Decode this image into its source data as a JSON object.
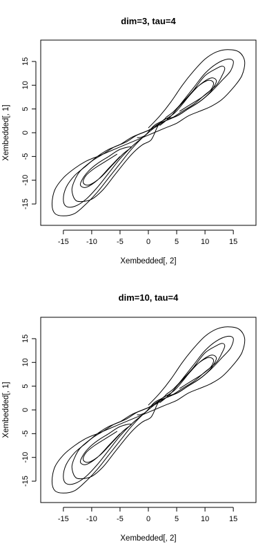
{
  "chart_data": [
    {
      "type": "line",
      "title": "dim=3, tau=4",
      "xlabel": "Xembedded[, 2]",
      "ylabel": "Xembedded[, 1]",
      "xlim": [
        -19,
        19
      ],
      "ylim": [
        -19.5,
        19.5
      ],
      "xticks": [
        -15,
        -10,
        -5,
        0,
        5,
        10,
        15
      ],
      "yticks": [
        -15,
        -10,
        -5,
        0,
        5,
        10,
        15
      ],
      "grid": false,
      "color": "#000000",
      "series": [
        {
          "x": [
            -2.0,
            -1.5,
            -0.5,
            1.0,
            2.5,
            4.5,
            6.0,
            8.0,
            10.0,
            12.0,
            13.0,
            13.5,
            13.0,
            12.0,
            10.0,
            8.0,
            6.0,
            4.0,
            2.0,
            0.0,
            -2.0,
            -4.0,
            -6.0,
            -8.0,
            -10.0,
            -12.0,
            -13.0,
            -13.5,
            -13.0,
            -12.0,
            -10.0,
            -8.0,
            -6.0,
            -4.0,
            -2.5,
            -1.0,
            0.5,
            1.5,
            2.0
          ],
          "y": [
            -1.0,
            -1.0,
            -0.5,
            1.5,
            2.5,
            4.0,
            6.0,
            9.0,
            12.0,
            13.5,
            14.0,
            13.5,
            12.0,
            10.0,
            8.0,
            6.0,
            4.5,
            3.0,
            2.0,
            0.5,
            -0.5,
            -2.0,
            -3.0,
            -4.5,
            -6.0,
            -8.0,
            -10.0,
            -12.0,
            -14.0,
            -14.5,
            -14.0,
            -12.0,
            -9.0,
            -6.0,
            -4.0,
            -2.5,
            -1.5,
            1.0,
            2.0
          ]
        },
        {
          "x": [
            2.0,
            4.0,
            6.0,
            8.0,
            10.0,
            12.0,
            14.0,
            15.0,
            14.5,
            13.0,
            11.0,
            9.0,
            7.0,
            5.0,
            3.0,
            1.0,
            -1.0,
            -3.0,
            -5.0,
            -7.0,
            -9.0,
            -11.0,
            -13.0,
            -14.5,
            -15.0,
            -14.5,
            -13.0,
            -11.0,
            -9.0,
            -7.0,
            -5.0,
            -3.0,
            -1.0,
            0.0
          ],
          "y": [
            1.5,
            3.5,
            6.5,
            9.5,
            12.5,
            14.5,
            15.5,
            15.0,
            13.0,
            11.0,
            8.5,
            6.5,
            5.0,
            3.5,
            2.5,
            1.0,
            0.0,
            -1.0,
            -2.5,
            -3.5,
            -5.0,
            -7.0,
            -9.0,
            -11.5,
            -14.0,
            -15.5,
            -15.5,
            -14.0,
            -11.5,
            -8.5,
            -5.5,
            -3.0,
            -1.0,
            0.0
          ]
        },
        {
          "x": [
            0.0,
            2.0,
            4.0,
            6.0,
            8.0,
            10.0,
            12.0,
            14.0,
            16.0,
            17.0,
            16.5,
            15.0,
            13.0,
            11.0,
            9.0,
            7.0,
            5.0,
            3.0,
            1.0,
            -1.0,
            -3.0,
            -5.0,
            -7.0,
            -9.0,
            -11.0,
            -13.0,
            -15.0,
            -16.5,
            -17.0,
            -16.5,
            -15.0,
            -13.0,
            -11.0,
            -9.0,
            -7.0,
            -5.0,
            -3.0,
            -1.0,
            1.0,
            3.0
          ],
          "y": [
            1.0,
            3.5,
            6.5,
            10.0,
            13.0,
            15.5,
            17.0,
            17.5,
            17.0,
            15.0,
            12.0,
            9.5,
            7.0,
            5.5,
            4.5,
            3.5,
            2.0,
            1.0,
            0.0,
            -1.0,
            -2.0,
            -3.0,
            -4.0,
            -5.0,
            -6.0,
            -7.5,
            -9.5,
            -12.0,
            -15.0,
            -17.0,
            -17.5,
            -17.0,
            -15.0,
            -12.5,
            -9.5,
            -6.5,
            -3.5,
            -1.0,
            1.0,
            3.0
          ]
        },
        {
          "x": [
            5.0,
            7.0,
            9.0,
            11.0,
            12.0,
            11.5,
            10.5,
            9.0,
            7.0,
            5.0,
            3.0,
            4.5,
            6.5,
            8.5,
            10.5,
            11.5,
            11.0,
            9.5,
            7.5,
            5.5
          ],
          "y": [
            5.0,
            7.5,
            10.0,
            11.5,
            11.0,
            9.5,
            8.0,
            6.5,
            5.0,
            3.5,
            3.0,
            4.5,
            7.0,
            9.5,
            11.0,
            10.5,
            9.0,
            7.5,
            6.0,
            4.5
          ]
        },
        {
          "x": [
            -5.0,
            -7.0,
            -9.0,
            -11.0,
            -12.0,
            -11.5,
            -10.5,
            -9.0,
            -7.0,
            -5.0,
            -3.0,
            -4.5,
            -6.5,
            -8.5,
            -10.5,
            -11.5,
            -11.0,
            -9.5,
            -7.5,
            -5.5
          ],
          "y": [
            -5.0,
            -7.5,
            -10.0,
            -11.5,
            -11.0,
            -9.5,
            -8.0,
            -6.5,
            -5.0,
            -3.5,
            -3.0,
            -4.5,
            -7.0,
            -9.5,
            -11.0,
            -10.5,
            -9.0,
            -7.5,
            -6.0,
            -4.5
          ]
        }
      ]
    },
    {
      "type": "line",
      "title": "dim=10, tau=4",
      "xlabel": "Xembedded[, 2]",
      "ylabel": "Xembedded[, 1]",
      "xlim": [
        -19,
        19
      ],
      "ylim": [
        -19.5,
        19.5
      ],
      "xticks": [
        -15,
        -10,
        -5,
        0,
        5,
        10,
        15
      ],
      "yticks": [
        -15,
        -10,
        -5,
        0,
        5,
        10,
        15
      ],
      "grid": false,
      "color": "#000000",
      "series": [
        {
          "x": [
            -2.0,
            -1.5,
            -0.5,
            1.0,
            2.5,
            4.5,
            6.0,
            8.0,
            10.0,
            12.0,
            13.0,
            13.5,
            13.0,
            12.0,
            10.0,
            8.0,
            6.0,
            4.0,
            2.0,
            0.0,
            -2.0,
            -4.0,
            -6.0,
            -8.0,
            -10.0,
            -12.0,
            -13.0,
            -13.5,
            -13.0,
            -12.0,
            -10.0,
            -8.0,
            -6.0,
            -4.0,
            -2.5,
            -1.0,
            0.5,
            1.5,
            2.0
          ],
          "y": [
            -1.0,
            -1.0,
            -0.5,
            1.5,
            2.5,
            4.0,
            6.0,
            9.0,
            12.0,
            13.5,
            14.0,
            13.5,
            12.0,
            10.0,
            8.0,
            6.0,
            4.5,
            3.0,
            2.0,
            0.5,
            -0.5,
            -2.0,
            -3.0,
            -4.5,
            -6.0,
            -8.0,
            -10.0,
            -12.0,
            -14.0,
            -14.5,
            -14.0,
            -12.0,
            -9.0,
            -6.0,
            -4.0,
            -2.5,
            -1.5,
            1.0,
            2.0
          ]
        },
        {
          "x": [
            2.0,
            4.0,
            6.0,
            8.0,
            10.0,
            12.0,
            14.0,
            15.0,
            14.5,
            13.0,
            11.0,
            9.0,
            7.0,
            5.0,
            3.0,
            1.0,
            -1.0,
            -3.0,
            -5.0,
            -7.0,
            -9.0,
            -11.0,
            -13.0,
            -14.5,
            -15.0,
            -14.5,
            -13.0,
            -11.0,
            -9.0,
            -7.0,
            -5.0,
            -3.0,
            -1.0,
            0.0
          ],
          "y": [
            1.5,
            3.5,
            6.5,
            9.5,
            12.5,
            14.5,
            15.5,
            15.0,
            13.0,
            11.0,
            8.5,
            6.5,
            5.0,
            3.5,
            2.5,
            1.0,
            0.0,
            -1.0,
            -2.5,
            -3.5,
            -5.0,
            -7.0,
            -9.0,
            -11.5,
            -14.0,
            -15.5,
            -15.5,
            -14.0,
            -11.5,
            -8.5,
            -5.5,
            -3.0,
            -1.0,
            0.0
          ]
        },
        {
          "x": [
            0.0,
            2.0,
            4.0,
            6.0,
            8.0,
            10.0,
            12.0,
            14.0,
            16.0,
            17.0,
            16.5,
            15.0,
            13.0,
            11.0,
            9.0,
            7.0,
            5.0,
            3.0,
            1.0,
            -1.0,
            -3.0,
            -5.0,
            -7.0,
            -9.0,
            -11.0,
            -13.0,
            -15.0,
            -16.5,
            -17.0,
            -16.5,
            -15.0,
            -13.0,
            -11.0,
            -9.0,
            -7.0,
            -5.0,
            -3.0,
            -1.0,
            1.0,
            3.0
          ],
          "y": [
            1.0,
            3.5,
            6.5,
            10.0,
            13.0,
            15.5,
            17.0,
            17.5,
            17.0,
            15.0,
            12.0,
            9.5,
            7.0,
            5.5,
            4.5,
            3.5,
            2.0,
            1.0,
            0.0,
            -1.0,
            -2.0,
            -3.0,
            -4.0,
            -5.0,
            -6.0,
            -7.5,
            -9.5,
            -12.0,
            -15.0,
            -17.0,
            -17.5,
            -17.0,
            -15.0,
            -12.5,
            -9.5,
            -6.5,
            -3.5,
            -1.0,
            1.0,
            3.0
          ]
        },
        {
          "x": [
            5.0,
            7.0,
            9.0,
            11.0,
            12.0,
            11.5,
            10.5,
            9.0,
            7.0,
            5.0,
            3.0,
            4.5,
            6.5,
            8.5,
            10.5,
            11.5,
            11.0,
            9.5,
            7.5,
            5.5
          ],
          "y": [
            5.0,
            7.5,
            10.0,
            11.5,
            11.0,
            9.5,
            8.0,
            6.5,
            5.0,
            3.5,
            3.0,
            4.5,
            7.0,
            9.5,
            11.0,
            10.5,
            9.0,
            7.5,
            6.0,
            4.5
          ]
        },
        {
          "x": [
            -5.0,
            -7.0,
            -9.0,
            -11.0,
            -12.0,
            -11.5,
            -10.5,
            -9.0,
            -7.0,
            -5.0,
            -3.0,
            -4.5,
            -6.5,
            -8.5,
            -10.5,
            -11.5,
            -11.0,
            -9.5,
            -7.5,
            -5.5
          ],
          "y": [
            -5.0,
            -7.5,
            -10.0,
            -11.5,
            -11.0,
            -9.5,
            -8.0,
            -6.5,
            -5.0,
            -3.5,
            -3.0,
            -4.5,
            -7.0,
            -9.5,
            -11.0,
            -10.5,
            -9.0,
            -7.5,
            -6.0,
            -4.5
          ]
        }
      ]
    }
  ]
}
